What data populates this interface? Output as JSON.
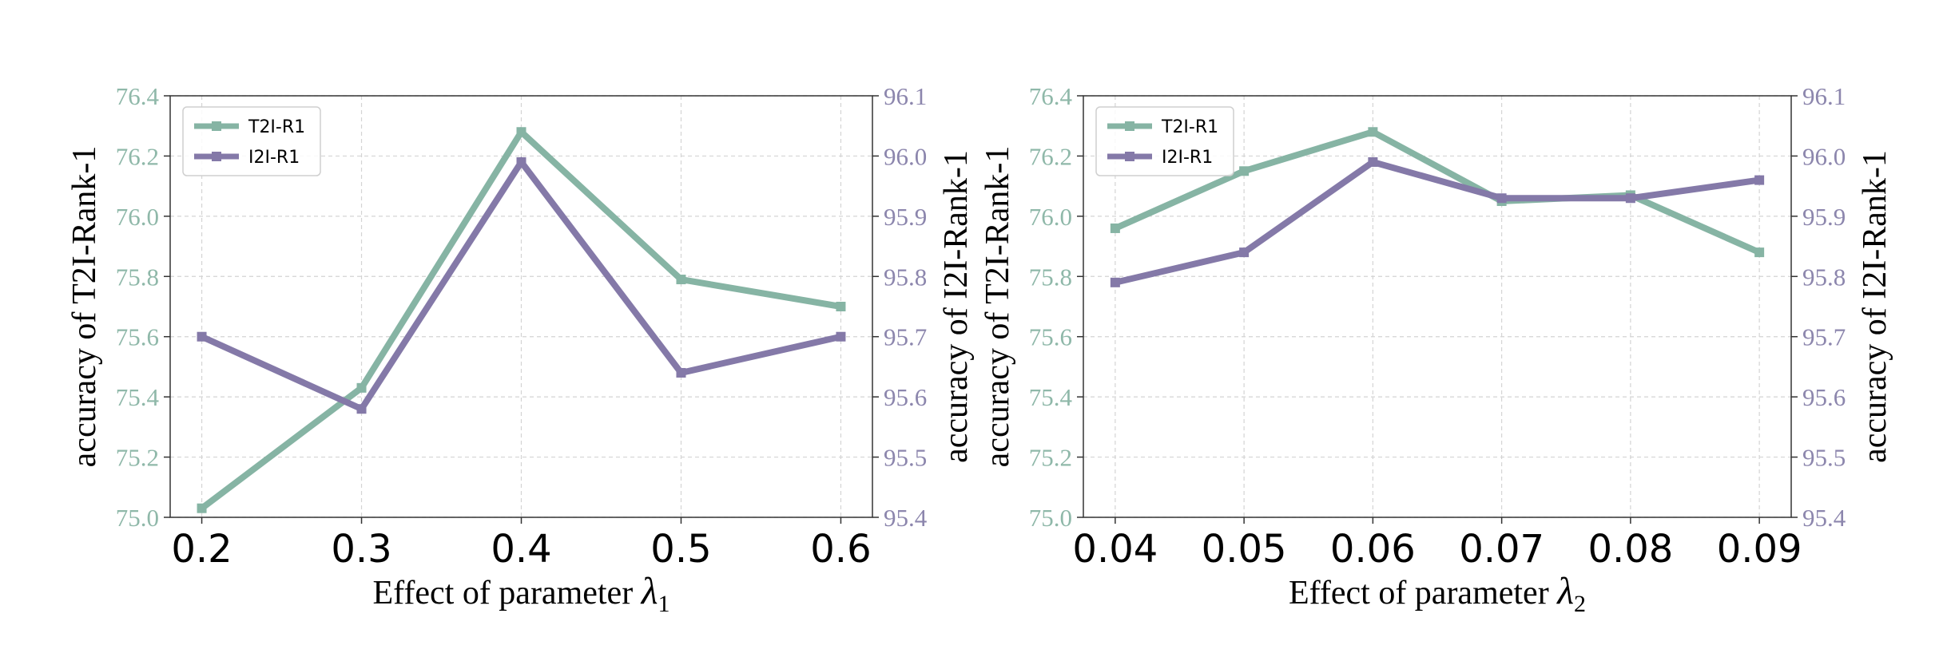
{
  "chart_data": [
    {
      "type": "line",
      "xlabel_prefix": "Effect of parameter ",
      "xlabel_symbol": "λ",
      "xlabel_subscript": "1",
      "ylabel_left": "accuracy of T2I-Rank-1",
      "ylabel_right": "accuracy of I2I-Rank-1",
      "x": [
        "0.2",
        "0.3",
        "0.4",
        "0.5",
        "0.6"
      ],
      "ylim_left": [
        75.0,
        76.4
      ],
      "ylim_right": [
        95.4,
        96.1
      ],
      "yticks_left": [
        "75.0",
        "75.2",
        "75.4",
        "75.6",
        "75.8",
        "76.0",
        "76.2",
        "76.4"
      ],
      "yticks_right": [
        "95.4",
        "95.5",
        "95.6",
        "95.7",
        "95.8",
        "95.9",
        "96.0",
        "96.1"
      ],
      "grid": true,
      "legend_position": "top-left",
      "series": [
        {
          "name": "T2I-R1",
          "axis": "left",
          "color": "#86b4a4",
          "values": [
            75.03,
            75.43,
            76.28,
            75.79,
            75.7
          ]
        },
        {
          "name": "I2I-R1",
          "axis": "right",
          "color": "#8479a8",
          "values": [
            95.7,
            95.58,
            95.99,
            95.64,
            95.7
          ]
        }
      ]
    },
    {
      "type": "line",
      "xlabel_prefix": "Effect of parameter ",
      "xlabel_symbol": "λ",
      "xlabel_subscript": "2",
      "ylabel_left": "accuracy of T2I-Rank-1",
      "ylabel_right": "accuracy of I2I-Rank-1",
      "x": [
        "0.04",
        "0.05",
        "0.06",
        "0.07",
        "0.08",
        "0.09"
      ],
      "ylim_left": [
        75.0,
        76.4
      ],
      "ylim_right": [
        95.4,
        96.1
      ],
      "yticks_left": [
        "75.0",
        "75.2",
        "75.4",
        "75.6",
        "75.8",
        "76.0",
        "76.2",
        "76.4"
      ],
      "yticks_right": [
        "95.4",
        "95.5",
        "95.6",
        "95.7",
        "95.8",
        "95.9",
        "96.0",
        "96.1"
      ],
      "grid": true,
      "legend_position": "top-left",
      "series": [
        {
          "name": "T2I-R1",
          "axis": "left",
          "color": "#86b4a4",
          "values": [
            75.96,
            76.15,
            76.28,
            76.05,
            76.07,
            75.88
          ]
        },
        {
          "name": "I2I-R1",
          "axis": "right",
          "color": "#8479a8",
          "values": [
            95.79,
            95.84,
            95.99,
            95.93,
            95.93,
            95.96
          ]
        }
      ]
    }
  ]
}
